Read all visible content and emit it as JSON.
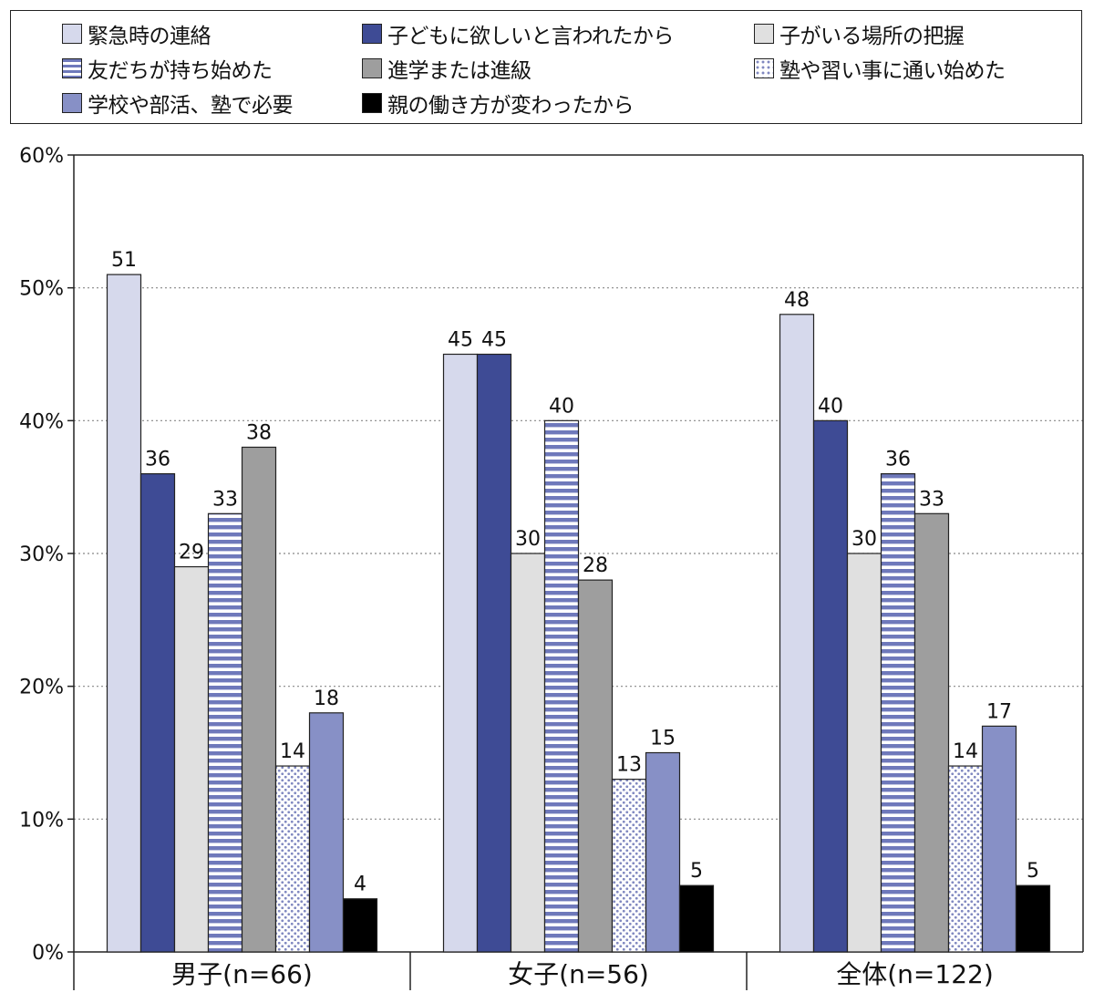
{
  "chart_data": {
    "type": "bar",
    "categories": [
      "男子(n=66)",
      "女子(n=56)",
      "全体(n=122)"
    ],
    "ylim": [
      0,
      60
    ],
    "yticks": [
      0,
      10,
      20,
      30,
      40,
      50,
      60
    ],
    "ytick_labels": [
      "0%",
      "10%",
      "20%",
      "30%",
      "40%",
      "50%",
      "60%"
    ],
    "grid": "horizontal-dotted",
    "legend_position": "top",
    "series": [
      {
        "name": "緊急時の連絡",
        "values": [
          51,
          45,
          48
        ],
        "color": "#d6d9ec",
        "pattern": "solid"
      },
      {
        "name": "子どもに欲しいと言われたから",
        "values": [
          36,
          45,
          40
        ],
        "color": "#3e4b95",
        "pattern": "solid"
      },
      {
        "name": "子がいる場所の把握",
        "values": [
          29,
          30,
          30
        ],
        "color": "#e0e0e0",
        "pattern": "solid"
      },
      {
        "name": "友だちが持ち始めた",
        "values": [
          33,
          40,
          36
        ],
        "color": "#6f79bb",
        "pattern": "stripes"
      },
      {
        "name": "進学または進級",
        "values": [
          38,
          28,
          33
        ],
        "color": "#9e9e9e",
        "pattern": "solid"
      },
      {
        "name": "塾や習い事に通い始めた",
        "values": [
          14,
          13,
          14
        ],
        "color": "#8088c0",
        "pattern": "dots"
      },
      {
        "name": "学校や部活、塾で必要",
        "values": [
          18,
          15,
          17
        ],
        "color": "#8790c6",
        "pattern": "solid"
      },
      {
        "name": "親の働き方が変わったから",
        "values": [
          4,
          5,
          5
        ],
        "color": "#000000",
        "pattern": "solid"
      }
    ]
  }
}
